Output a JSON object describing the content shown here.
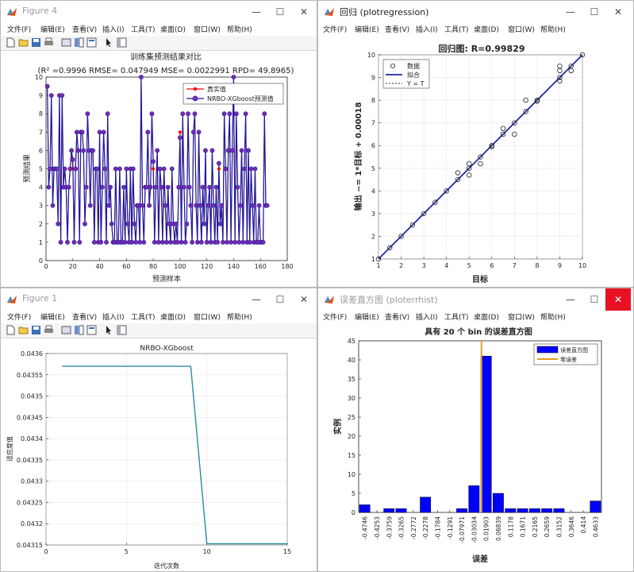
{
  "menu": [
    "文件(F)",
    "编辑(E)",
    "查看(V)",
    "插入(I)",
    "工具(T)",
    "桌面(D)",
    "窗口(W)",
    "帮助(H)"
  ],
  "windows": {
    "w1": {
      "title": "Figure 4"
    },
    "w2": {
      "title": "回归 (plotregression)"
    },
    "w3": {
      "title": "Figure 1"
    },
    "w4": {
      "title": "误差直方图 (ploterrhist)"
    }
  },
  "fig4": {
    "title": "训练集预测结果对比",
    "subtitle": "(R² =0.9996 RMSE= 0.047949 MSE= 0.0022991 RPD= 49.8965)",
    "xlabel": "预测样本",
    "ylabel": "预测结果",
    "legend": [
      "真实值",
      "NRBO-XGboost预测值"
    ],
    "xticks": [
      "0",
      "20",
      "40",
      "60",
      "80",
      "100",
      "120",
      "140",
      "160",
      "180"
    ],
    "yticks": [
      "0",
      "1",
      "2",
      "3",
      "4",
      "5",
      "6",
      "7",
      "8",
      "9",
      "10"
    ]
  },
  "regression": {
    "title": "回归图: R=0.99829",
    "xlabel": "目标",
    "ylabel": "输出 ~= 1*目标 + 0.00018",
    "legend": [
      "数据",
      "拟合",
      "Y = T"
    ],
    "xticks": [
      "1",
      "2",
      "3",
      "4",
      "5",
      "6",
      "7",
      "8",
      "9",
      "10"
    ],
    "yticks": [
      "1",
      "2",
      "3",
      "4",
      "5",
      "6",
      "7",
      "8",
      "9",
      "10"
    ]
  },
  "fig1": {
    "title": "NRBO-XGboost",
    "xlabel": "迭代次数",
    "ylabel": "适应度值",
    "xticks": [
      "0",
      "5",
      "10",
      "15"
    ],
    "yticks": [
      "0.04315",
      "0.0432",
      "0.04325",
      "0.0433",
      "0.04335",
      "0.0434",
      "0.04345",
      "0.0435",
      "0.04355",
      "0.0436"
    ]
  },
  "errhist": {
    "title": "具有 20 个 bin 的误差直方图",
    "xlabel": "误差",
    "ylabel": "实例",
    "legend": [
      "误差直方图",
      "零误差"
    ],
    "yticks": [
      "0",
      "5",
      "10",
      "15",
      "20",
      "25",
      "30",
      "35",
      "40",
      "45"
    ],
    "bin_labels": [
      "-0.4746",
      "-0.4253",
      "-0.3759",
      "-0.3265",
      "-0.2772",
      "-0.2278",
      "-0.1784",
      "-0.1291",
      "-0.07971",
      "-0.03034",
      "0.01903",
      "0.06839",
      "0.1178",
      "0.1671",
      "0.2165",
      "0.2659",
      "0.3152",
      "0.3646",
      "0.414",
      "0.4633"
    ]
  },
  "chart_data": [
    {
      "type": "line",
      "title": "训练集预测结果对比",
      "xlabel": "预测样本",
      "ylabel": "预测结果",
      "xlim": [
        0,
        180
      ],
      "ylim": [
        0,
        10
      ],
      "series": [
        {
          "name": "真实值",
          "color": "#ff0000",
          "values": [
            9.5,
            4,
            5,
            9,
            3,
            5,
            5,
            5,
            2,
            9,
            1,
            9,
            4,
            5,
            4,
            1,
            4,
            5,
            6,
            5,
            1,
            5,
            7,
            6,
            1,
            7,
            7,
            6,
            2,
            4,
            8,
            6,
            3,
            6,
            6,
            1,
            5,
            5,
            1,
            7,
            1,
            4,
            7,
            5,
            1,
            8,
            3,
            4,
            2,
            1,
            1,
            5,
            1,
            1,
            5,
            1,
            1,
            4,
            1,
            5,
            2,
            1,
            5,
            1,
            5,
            2,
            1,
            3,
            3,
            1,
            10,
            3,
            1,
            4,
            4,
            7,
            3,
            4,
            8,
            5,
            1,
            4,
            6,
            1,
            5,
            4,
            1,
            5,
            3,
            1,
            4,
            2,
            1,
            5,
            2,
            1,
            2,
            1,
            4,
            7,
            1,
            8,
            4,
            1,
            2,
            8,
            4,
            3,
            1,
            7,
            8,
            3,
            1,
            7,
            3,
            1,
            4,
            2,
            6,
            1,
            3,
            4,
            1,
            6,
            3,
            1,
            4,
            1,
            5,
            2,
            3,
            1,
            8,
            5,
            1,
            6,
            8,
            1,
            6,
            10,
            1,
            8,
            4,
            1,
            3,
            6,
            1,
            5,
            8,
            1,
            6,
            1,
            5,
            3,
            1,
            5,
            1,
            1,
            3,
            1,
            1,
            1,
            8,
            3,
            3
          ]
        },
        {
          "name": "NRBO-XGboost预测值",
          "color": "#1a1aa0",
          "values": [
            9.5,
            4,
            5,
            9,
            3,
            5,
            5,
            5,
            2,
            9,
            1,
            9,
            4,
            5,
            4,
            1,
            4,
            5,
            6,
            5.5,
            1,
            5,
            7,
            6,
            1,
            7,
            7,
            6,
            2,
            4,
            8,
            6,
            3,
            6,
            6,
            1,
            5,
            5,
            1,
            7,
            1,
            4,
            7,
            5,
            1,
            8,
            3,
            4,
            2,
            1,
            1,
            5,
            1,
            1,
            5,
            1,
            1,
            4,
            1,
            5,
            2,
            1,
            5,
            1,
            5,
            2,
            1,
            3,
            3,
            1,
            10,
            3,
            1,
            4,
            4,
            7,
            3,
            4,
            8,
            5.4,
            1,
            4,
            6,
            1,
            5,
            4,
            1,
            5,
            3,
            1,
            4,
            2,
            1,
            5,
            2,
            1,
            2,
            1,
            4,
            6.7,
            1,
            8,
            4,
            1,
            2,
            8,
            4,
            3,
            1,
            7,
            8,
            3,
            1,
            7,
            3,
            1,
            4,
            2,
            6,
            1,
            3,
            4,
            1,
            6,
            3,
            1,
            4,
            1,
            5.3,
            2,
            3,
            1,
            8,
            5,
            1,
            6,
            8,
            1,
            6,
            10,
            1,
            8,
            4,
            1,
            3,
            6,
            1,
            5,
            8,
            1,
            6,
            1,
            5,
            3,
            1,
            5,
            1,
            1,
            3,
            1,
            1,
            1,
            8,
            3,
            3
          ]
        }
      ]
    },
    {
      "type": "scatter",
      "title": "回归图: R=0.99829",
      "xlabel": "目标",
      "ylabel": "输出 ~= 1*目标 + 0.00018",
      "xlim": [
        1,
        10
      ],
      "ylim": [
        1,
        10
      ],
      "series": [
        {
          "name": "数据",
          "points": [
            [
              1,
              1
            ],
            [
              1.5,
              1.5
            ],
            [
              2,
              2
            ],
            [
              2.5,
              2.5
            ],
            [
              3,
              3
            ],
            [
              3.5,
              3.5
            ],
            [
              4,
              4
            ],
            [
              4.5,
              4.5
            ],
            [
              4.5,
              4.8
            ],
            [
              5,
              5
            ],
            [
              5,
              4.7
            ],
            [
              5,
              5.2
            ],
            [
              5.5,
              5.5
            ],
            [
              5.5,
              5.2
            ],
            [
              6,
              6
            ],
            [
              6,
              5.95
            ],
            [
              6.5,
              6.5
            ],
            [
              6.5,
              6.75
            ],
            [
              7,
              7
            ],
            [
              7,
              6.5
            ],
            [
              7.5,
              7.5
            ],
            [
              7.5,
              8
            ],
            [
              8,
              8
            ],
            [
              8,
              7.95
            ],
            [
              9,
              9
            ],
            [
              9,
              8.85
            ],
            [
              9,
              9.3
            ],
            [
              9,
              9.5
            ],
            [
              9.5,
              9.5
            ],
            [
              9.5,
              9.3
            ],
            [
              10,
              10
            ]
          ]
        },
        {
          "name": "拟合",
          "line": [
            [
              1,
              1.00018
            ],
            [
              10,
              10.00018
            ]
          ]
        },
        {
          "name": "Y = T",
          "line": [
            [
              1,
              1
            ],
            [
              10,
              10
            ]
          ]
        }
      ]
    },
    {
      "type": "line",
      "title": "NRBO-XGboost",
      "xlabel": "迭代次数",
      "ylabel": "适应度值",
      "xlim": [
        0,
        15
      ],
      "ylim": [
        0.04315,
        0.0436
      ],
      "series": [
        {
          "name": "",
          "color": "#2a8aa0",
          "points": [
            [
              1,
              0.04357
            ],
            [
              9,
              0.04357
            ],
            [
              10,
              0.043153
            ],
            [
              15,
              0.043153
            ]
          ]
        }
      ]
    },
    {
      "type": "bar",
      "title": "具有 20 个 bin 的误差直方图",
      "xlabel": "误差",
      "ylabel": "实例",
      "ylim": [
        0,
        45
      ],
      "categories": [
        "-0.4746",
        "-0.4253",
        "-0.3759",
        "-0.3265",
        "-0.2772",
        "-0.2278",
        "-0.1784",
        "-0.1291",
        "-0.07971",
        "-0.03034",
        "0.01903",
        "0.06839",
        "0.1178",
        "0.1671",
        "0.2165",
        "0.2659",
        "0.3152",
        "0.3646",
        "0.414",
        "0.4633"
      ],
      "values": [
        2,
        0,
        1,
        1,
        0,
        4,
        0,
        0,
        1,
        7,
        41,
        5,
        1,
        1,
        1,
        1,
        1,
        0,
        0,
        3
      ],
      "zero_error": 0
    }
  ]
}
